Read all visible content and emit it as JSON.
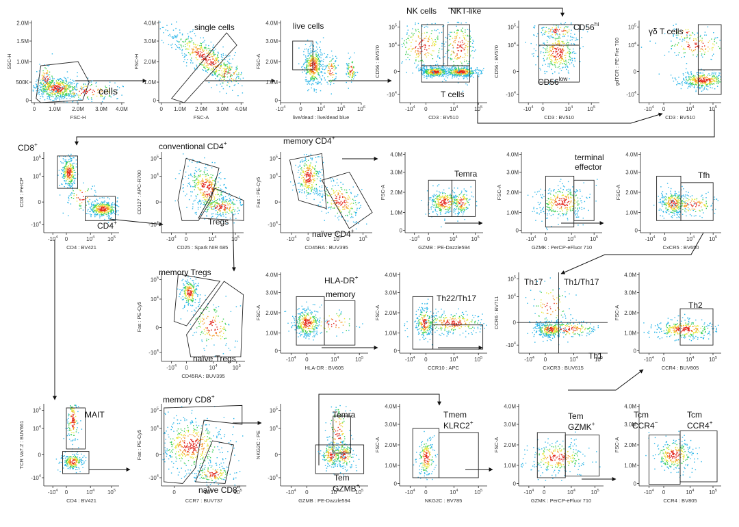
{
  "chart_data": {
    "type": "scatter",
    "title": "",
    "panels": [
      {
        "id": "p1",
        "xlabel": "FSC-H",
        "ylabel": "SSC-H",
        "xticks": [
          "0",
          "1.0M",
          "2.0M",
          "3.0M",
          "4.0M"
        ],
        "yticks": [
          "0",
          "500K",
          "1.0M",
          "1.5M",
          "2.0M"
        ],
        "gate_labels": [
          "cells"
        ]
      },
      {
        "id": "p2",
        "xlabel": "FSC-A",
        "ylabel": "FSC-H",
        "xticks": [
          "0",
          "1.0M",
          "2.0M",
          "3.0M",
          "4.0M"
        ],
        "yticks": [
          "0",
          "1.0M",
          "2.0M",
          "3.0M",
          "4.0M"
        ],
        "gate_labels": [
          "single cells"
        ]
      },
      {
        "id": "p3",
        "xlabel": "live/dead : live/dead blue",
        "ylabel": "FSC-A",
        "xticks": [
          "-10^4",
          "0",
          "10^4",
          "10^5",
          "10^6"
        ],
        "yticks": [
          "0",
          "1.0M",
          "2.0M",
          "3.0M",
          "4.0M"
        ],
        "gate_labels": [
          "live cells"
        ]
      },
      {
        "id": "p4",
        "xlabel": "CD3 : BV510",
        "ylabel": "CD56 : BV570",
        "xticks": [
          "-10^4",
          "0",
          "10^4",
          "10^5"
        ],
        "yticks": [
          "-10^4",
          "0",
          "10^4",
          "10^5"
        ],
        "gate_labels": [
          "NK cells",
          "NKT-like",
          "T cells"
        ]
      },
      {
        "id": "p5",
        "xlabel": "CD3 : BV510",
        "ylabel": "CD56 : BV570",
        "xticks": [
          "-10^4",
          "0",
          "10^4",
          "10^5"
        ],
        "yticks": [
          "-10^4",
          "0",
          "10^4",
          "10^5"
        ],
        "gate_labels": [
          "CD56hi",
          "CD56low"
        ]
      },
      {
        "id": "p6",
        "xlabel": "CD3 : BV510",
        "ylabel": "gdTCR : PE-Fire 700",
        "xticks": [
          "-10^4",
          "0",
          "10^4",
          "10^5"
        ],
        "yticks": [
          "-10^4",
          "0",
          "10^4",
          "10^5"
        ],
        "gate_labels": [
          "γδ T cells"
        ]
      },
      {
        "id": "p7",
        "xlabel": "CD4 : BV421",
        "ylabel": "CD8 : PerCP",
        "xticks": [
          "-10^4",
          "0",
          "10^4",
          "10^5"
        ],
        "yticks": [
          "-10^4",
          "0",
          "10^4",
          "10^5"
        ],
        "gate_labels": [
          "CD8+",
          "CD4+"
        ]
      },
      {
        "id": "p8",
        "xlabel": "CD25 : Spark NIR 685",
        "ylabel": "CD127 : APC-R700",
        "xticks": [
          "-10^4",
          "0",
          "10^4",
          "10^5"
        ],
        "yticks": [
          "-10^4",
          "0",
          "10^4",
          "10^5"
        ],
        "gate_labels": [
          "conventional CD4+",
          "Tregs"
        ]
      },
      {
        "id": "p9",
        "xlabel": "CD45RA : BUV395",
        "ylabel": "Fas : PE-Cy5",
        "xticks": [
          "-10^4",
          "0",
          "10^4",
          "10^5"
        ],
        "yticks": [
          "-10^4",
          "0",
          "10^4",
          "10^5"
        ],
        "gate_labels": [
          "memory CD4+",
          "naïve CD4+"
        ]
      },
      {
        "id": "p10",
        "xlabel": "GZMB : PE-Dazzle594",
        "ylabel": "FSC-A",
        "xticks": [
          "-10^4",
          "0",
          "10^4",
          "10^5"
        ],
        "yticks": [
          "0",
          "1.0M",
          "2.0M",
          "3.0M",
          "4.0M"
        ],
        "gate_labels": [
          "Temra"
        ]
      },
      {
        "id": "p11",
        "xlabel": "GZMK : PerCP-eFluor 710",
        "ylabel": "FSC-A",
        "xticks": [
          "-10^4",
          "0",
          "10^4",
          "10^5"
        ],
        "yticks": [
          "0",
          "1.0M",
          "2.0M",
          "3.0M",
          "4.0M"
        ],
        "gate_labels": [
          "terminal",
          "effector"
        ]
      },
      {
        "id": "p12",
        "xlabel": "CxCR5 : BV650",
        "ylabel": "FSC-A",
        "xticks": [
          "-10^4",
          "0",
          "10^4",
          "10^5"
        ],
        "yticks": [
          "0",
          "1.0M",
          "2.0M",
          "3.0M",
          "4.0M"
        ],
        "gate_labels": [
          "Tfh"
        ]
      },
      {
        "id": "p13",
        "xlabel": "CD45RA : BUV395",
        "ylabel": "Fas : PE-Cy5",
        "xticks": [
          "-10^4",
          "0",
          "10^4",
          "10^5"
        ],
        "yticks": [
          "-10^4",
          "0",
          "10^4",
          "10^5"
        ],
        "gate_labels": [
          "memory Tregs",
          "naïve Tregs"
        ]
      },
      {
        "id": "p14",
        "xlabel": "HLA-DR : BV605",
        "ylabel": "FSC-A",
        "xticks": [
          "-10^4",
          "0",
          "10^4",
          "10^5"
        ],
        "yticks": [
          "0",
          "1.0M",
          "2.0M",
          "3.0M",
          "4.0M"
        ],
        "gate_labels": [
          "HLA-DR+",
          "memory"
        ]
      },
      {
        "id": "p15",
        "xlabel": "CCR10 : APC",
        "ylabel": "FSC-A",
        "xticks": [
          "-10^4",
          "0",
          "10^4",
          "10^5"
        ],
        "yticks": [
          "0",
          "1.0M",
          "2.0M",
          "3.0M",
          "4.0M"
        ],
        "gate_labels": [
          "Th22/Th17"
        ]
      },
      {
        "id": "p16",
        "xlabel": "CXCR3 : BUV615",
        "ylabel": "CCR6 : BV711",
        "xticks": [
          "-10^4",
          "0",
          "10^4",
          "10^5"
        ],
        "yticks": [
          "-10^4",
          "0",
          "10^4",
          "10^5"
        ],
        "gate_labels": [
          "Th17",
          "Th1/Th17",
          "Th1"
        ]
      },
      {
        "id": "p17",
        "xlabel": "CCR4 : BUV805",
        "ylabel": "FSC-A",
        "xticks": [
          "-10^4",
          "0",
          "10^4",
          "10^5"
        ],
        "yticks": [
          "0",
          "1.0M",
          "2.0M",
          "3.0M",
          "4.0M"
        ],
        "gate_labels": [
          "Th2"
        ]
      },
      {
        "id": "p18",
        "xlabel": "CD4 : BV421",
        "ylabel": "TCR Va7.2 : BUV661",
        "xticks": [
          "-10^4",
          "0",
          "10^4",
          "10^5"
        ],
        "yticks": [
          "-10^4",
          "0",
          "10^4",
          "10^5"
        ],
        "gate_labels": [
          "MAIT"
        ]
      },
      {
        "id": "p19",
        "xlabel": "CCR7 : BUV737",
        "ylabel": "Fas : PE-Cy5",
        "xticks": [
          "0",
          "10^4",
          "10^5"
        ],
        "yticks": [
          "-10^4",
          "0",
          "10^4",
          "10^5"
        ],
        "gate_labels": [
          "memory CD8+",
          "naïve CD8+"
        ]
      },
      {
        "id": "p20",
        "xlabel": "GZMB : PE-Dazzle594",
        "ylabel": "NKG2C : PE",
        "xticks": [
          "-10^4",
          "0",
          "10^4",
          "10^5"
        ],
        "yticks": [
          "-10^4",
          "0",
          "10^4",
          "10^5"
        ],
        "gate_labels": [
          "Temra",
          "Tem",
          "GZMB+"
        ]
      },
      {
        "id": "p21",
        "xlabel": "NKG2C : BV785",
        "ylabel": "FSC-A",
        "xticks": [
          "-10^4",
          "0",
          "10^4",
          "10^5"
        ],
        "yticks": [
          "0",
          "1.0M",
          "2.0M",
          "3.0M",
          "4.0M"
        ],
        "gate_labels": [
          "Tmem",
          "KLRC2+"
        ]
      },
      {
        "id": "p22",
        "xlabel": "GZMK : PerCP-eFluor 710",
        "ylabel": "FSC-A",
        "xticks": [
          "-10^4",
          "0",
          "10^4",
          "10^5"
        ],
        "yticks": [
          "0",
          "1.0M",
          "2.0M",
          "3.0M",
          "4.0M"
        ],
        "gate_labels": [
          "Tem",
          "GZMK+"
        ]
      },
      {
        "id": "p23",
        "xlabel": "CCR4 : BV805",
        "ylabel": "FSC-A",
        "xticks": [
          "-10^4",
          "0",
          "10^4",
          "10^5"
        ],
        "yticks": [
          "0",
          "1.0M",
          "2.0M",
          "3.0M",
          "4.0M"
        ],
        "gate_labels": [
          "Tcm",
          "CCR4−",
          "Tcm",
          "CCR4+"
        ]
      }
    ]
  }
}
